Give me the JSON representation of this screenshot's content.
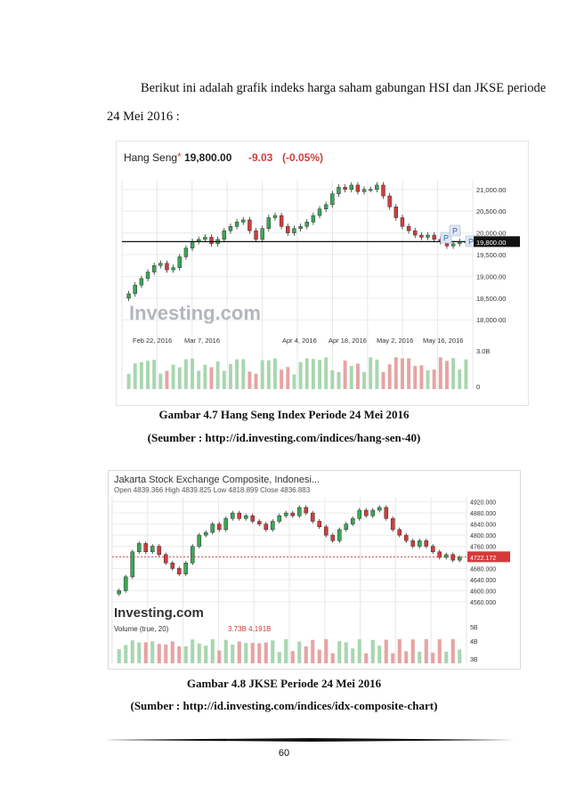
{
  "intro": {
    "line1": "Berikut ini adalah grafik indeks harga saham gabungan HSI dan JKSE periode",
    "line2": "24 Mei 2016 :"
  },
  "figures": [
    {
      "caption": "Gambar 4.7 Hang Seng Index Periode 24 Mei 2016",
      "source": "(Seumber : http://id.investing.com/indices/hang-sen-40)"
    },
    {
      "caption": "Gambar 4.8 JKSE Periode 24 Mei 2016",
      "source": "(Sumber : http://id.investing.com/indices/idx-composite-chart)"
    }
  ],
  "page_number": "60",
  "colors": {
    "up": "#3aa757",
    "down": "#d43b3b",
    "vol_up": "#a8d6b0",
    "vol_down": "#e7a3a3"
  },
  "chart_data": [
    {
      "type": "candlestick",
      "title": "Hang Seng",
      "last_value": "19,800.00",
      "change": "-9.03",
      "change_pct": "(-0.05%)",
      "watermark": "Investing.com",
      "price_marker": "19,800.00",
      "y_ticks": [
        "21,000.00",
        "20,500.00",
        "20,000.00",
        "19,500.00",
        "19,000.00",
        "18,500.00",
        "18,000.00"
      ],
      "ylim": [
        17800,
        21200
      ],
      "x_ticks": [
        "Feb 22, 2016",
        "Mar 7, 2016",
        "Apr 4, 2016",
        "Apr 18, 2016",
        "May 2, 2016",
        "May 16, 2016"
      ],
      "volume_ticks": [
        "3.0B",
        "0"
      ],
      "closes": [
        18600,
        18800,
        18950,
        19100,
        19250,
        19300,
        19150,
        19200,
        19450,
        19650,
        19800,
        19850,
        19900,
        19750,
        19850,
        20050,
        20150,
        20250,
        20300,
        20050,
        19850,
        20100,
        20350,
        20400,
        20150,
        20000,
        20100,
        20150,
        20250,
        20400,
        20550,
        20650,
        20900,
        21050,
        21000,
        21100,
        20950,
        21000,
        21000,
        21100,
        20850,
        20600,
        20350,
        20150,
        20050,
        19950,
        19900,
        19950,
        19850,
        19800,
        19700,
        19750,
        19800,
        19800
      ],
      "markers": [
        "P",
        "P",
        "P"
      ],
      "volume_label": "",
      "volume_values": ""
    },
    {
      "type": "candlestick",
      "title": "Jakarta Stock Exchange Composite, Indonesi...",
      "ohlc_label": "Open 4839.366  High 4839.825  Low 4818.899  Close 4836.883",
      "watermark": "Investing.com",
      "price_marker": "4722.172",
      "y_ticks": [
        "4920.000",
        "4880.000",
        "4840.000",
        "4800.000",
        "4760.000",
        "4720.000",
        "4680.000",
        "4640.000",
        "4600.000",
        "4560.000"
      ],
      "ylim": [
        4550,
        4935
      ],
      "x_ticks": [],
      "volume_label": "Volume (true, 20)",
      "volume_values": "3.73B  4.191B",
      "volume_ticks": [
        "5B",
        "4B",
        "3B"
      ],
      "closes": [
        4600,
        4650,
        4740,
        4770,
        4740,
        4760,
        4730,
        4700,
        4680,
        4660,
        4700,
        4760,
        4800,
        4810,
        4840,
        4820,
        4860,
        4880,
        4860,
        4870,
        4850,
        4840,
        4820,
        4850,
        4870,
        4880,
        4870,
        4900,
        4880,
        4850,
        4830,
        4800,
        4780,
        4820,
        4840,
        4860,
        4890,
        4870,
        4890,
        4900,
        4860,
        4820,
        4800,
        4780,
        4760,
        4780,
        4760,
        4740,
        4720,
        4730,
        4710,
        4720
      ]
    }
  ]
}
